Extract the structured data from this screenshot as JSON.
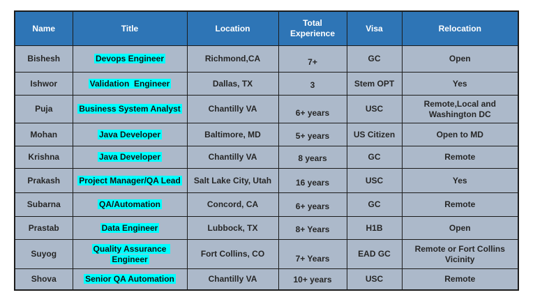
{
  "chart_data": {
    "type": "table",
    "title": "",
    "columns": [
      "Name",
      "Title",
      "Location",
      "Total Experience",
      "Visa",
      "Relocation"
    ],
    "rows": [
      [
        "Bishesh",
        "Devops Engineer",
        "Richmond,CA",
        "7+",
        "GC",
        "Open"
      ],
      [
        "Ishwor",
        "Validation  Engineer",
        "Dallas, TX",
        "3",
        "Stem OPT",
        "Yes"
      ],
      [
        "Puja",
        "Business System Analyst",
        "Chantilly VA",
        "6+ years",
        "USC",
        "Remote,Local and Washington DC"
      ],
      [
        "Mohan",
        "Java Developer",
        "Baltimore, MD",
        "5+ years",
        "US Citizen",
        "Open to MD"
      ],
      [
        "Krishna",
        "Java Developer",
        "Chantilly VA",
        "8 years",
        "GC",
        "Remote"
      ],
      [
        "Prakash",
        "Project Manager/QA Lead",
        "Salt Lake City, Utah",
        "16 years",
        "USC",
        "Yes"
      ],
      [
        "Subarna",
        "QA/Automation",
        "Concord, CA",
        "6+ years",
        "GC",
        "Remote"
      ],
      [
        "Prastab",
        "Data Engineer",
        "Lubbock, TX",
        "8+ Years",
        "H1B",
        "Open"
      ],
      [
        "Suyog",
        "Quality Assurance Engineer",
        "Fort Collins, CO",
        "7+ Years",
        "EAD GC",
        "Remote or Fort Collins Vicinity"
      ],
      [
        "Shova",
        "Senior QA Automation",
        "Chantilly VA",
        "10+ years",
        "USC",
        "Remote"
      ]
    ],
    "layout_hints": {
      "header_position": "top",
      "title_cells_highlighted": true,
      "experience_column_vertical_align": "bottom"
    }
  },
  "colors": {
    "header_bg": "#2E75B6",
    "header_text": "#FFFFFF",
    "cell_bg": "#ACB9CA",
    "cell_text": "#262626",
    "title_highlight": "#00FFFF",
    "border": "#1C1C1C",
    "page_bg": "#FFFFFF"
  }
}
